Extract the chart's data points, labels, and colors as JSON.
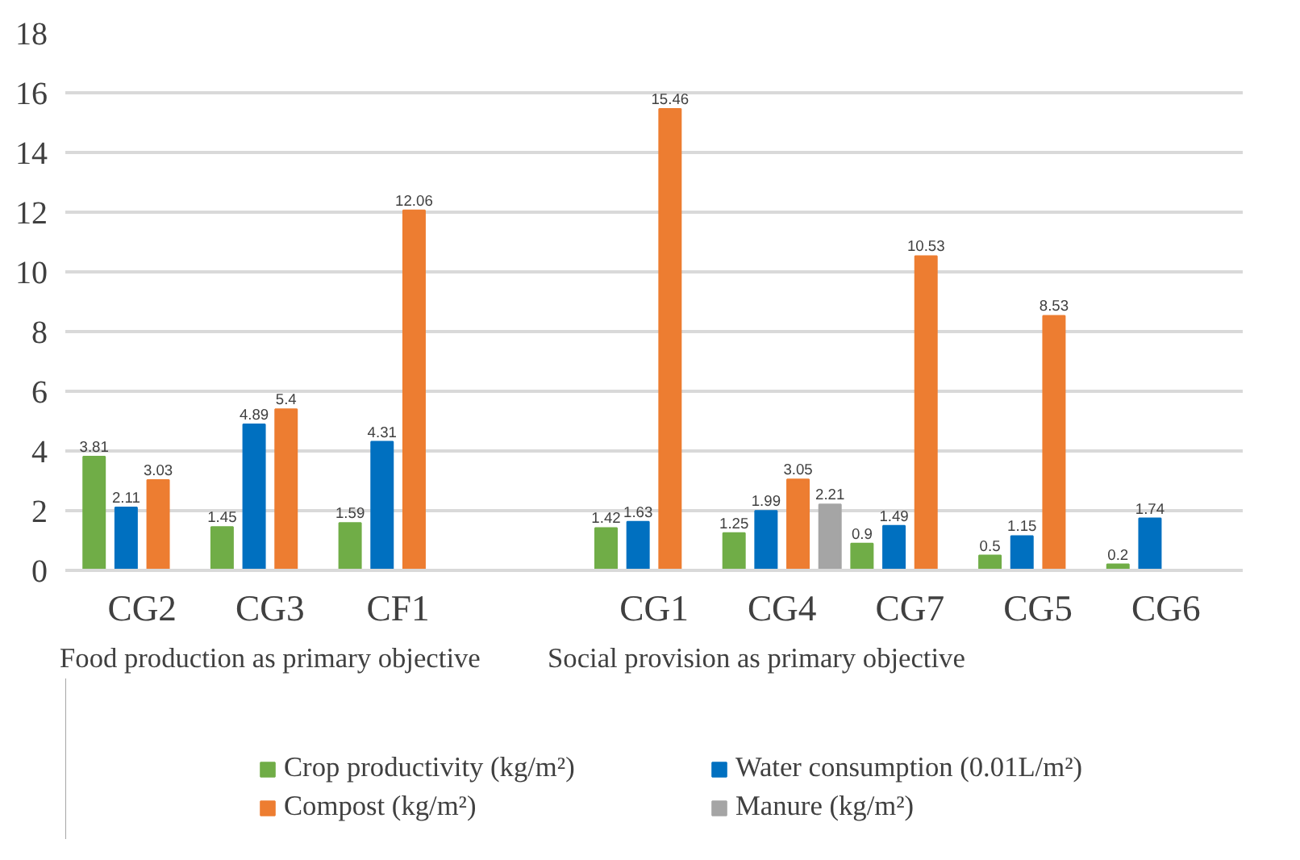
{
  "chart_data": {
    "type": "bar",
    "categories": [
      "CG2",
      "CG3",
      "CF1",
      null,
      "CG1",
      "CG4",
      "CG7",
      "CG5",
      "CG6"
    ],
    "series": [
      {
        "name": "Crop productivity (kg/m²)",
        "color": "#70ad47",
        "values": [
          3.81,
          1.45,
          1.59,
          null,
          1.42,
          1.25,
          0.9,
          0.5,
          0.2
        ]
      },
      {
        "name": "Water consumption (0.01L/m²)",
        "color": "#0070c0",
        "values": [
          2.11,
          4.89,
          4.31,
          null,
          1.63,
          1.99,
          1.49,
          1.15,
          1.74
        ]
      },
      {
        "name": "Compost (kg/m²)",
        "color": "#ed7d31",
        "values": [
          3.03,
          5.4,
          12.06,
          null,
          15.46,
          3.05,
          10.53,
          8.53,
          null
        ]
      },
      {
        "name": "Manure (kg/m²)",
        "color": "#a5a5a5",
        "values": [
          null,
          null,
          null,
          null,
          null,
          2.21,
          null,
          null,
          null
        ]
      }
    ],
    "annotations": [
      "Food production as primary objective",
      "Social provision as primary objective"
    ],
    "ylim": [
      0,
      18
    ],
    "yticks": [
      0,
      2,
      4,
      6,
      8,
      10,
      12,
      14,
      16,
      18
    ],
    "grid": "y",
    "legend": "bottom",
    "data_labels": true
  }
}
